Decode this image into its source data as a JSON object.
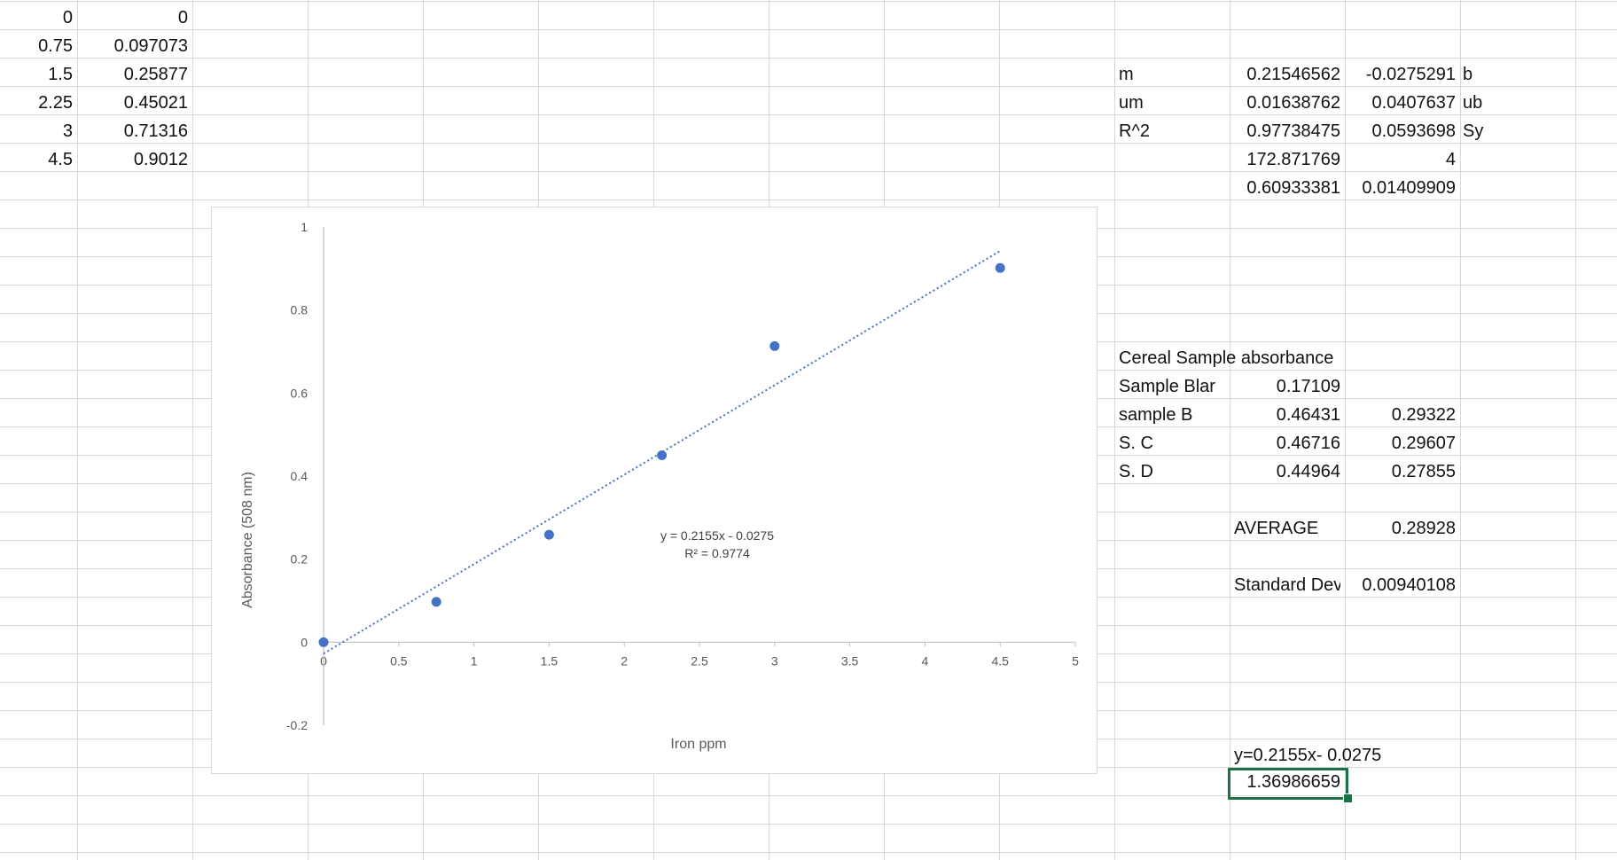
{
  "sheet": {
    "col_a": [
      "0",
      "0.75",
      "1.5",
      "2.25",
      "3",
      "4.5"
    ],
    "col_b": [
      "0",
      "0.097073",
      "0.25877",
      "0.45021",
      "0.71316",
      "0.9012"
    ],
    "linest": {
      "m_label": "m",
      "m": "0.21546562",
      "b": "-0.0275291",
      "b_label": "b",
      "um_label": "um",
      "um": "0.01638762",
      "ub": "0.0407637",
      "ub_label": "ub",
      "r2_label": "R^2",
      "r2": "0.97738475",
      "sy": "0.0593698",
      "sy_label": "Sy",
      "f": "172.871769",
      "df": "4",
      "ssreg": "0.60933381",
      "ssresid": "0.01409909"
    },
    "cereal": {
      "title": "Cereal Sample absorbance",
      "blank_label": " Sample Blar",
      "blank_value": "0.17109",
      "rows": [
        {
          "label": "sample B",
          "abs": "0.46431",
          "corr": "0.29322"
        },
        {
          "label": "S. C",
          "abs": "0.46716",
          "corr": "0.29607"
        },
        {
          "label": "S. D",
          "abs": "0.44964",
          "corr": "0.27855"
        }
      ],
      "average_label": "AVERAGE",
      "average_value": "0.28928",
      "std_label": "Standard Dev",
      "std_value": "0.00940108"
    },
    "equation_text": "y=0.2155x- 0.0275",
    "selected_cell_value": "1.36986659"
  },
  "chart_data": {
    "type": "scatter",
    "title": "",
    "xlabel": "Iron ppm",
    "ylabel": "Absorbance (508 nm)",
    "xlim": [
      0,
      5
    ],
    "ylim": [
      -0.2,
      1
    ],
    "x_ticks": [
      "0",
      "0.5",
      "1",
      "1.5",
      "2",
      "2.5",
      "3",
      "3.5",
      "4",
      "4.5",
      "5"
    ],
    "y_ticks": [
      "-0.2",
      "0",
      "0.2",
      "0.4",
      "0.6",
      "0.8",
      "1"
    ],
    "x": [
      0,
      0.75,
      1.5,
      2.25,
      3,
      4.5
    ],
    "y": [
      0,
      0.097073,
      0.25877,
      0.45021,
      0.71316,
      0.9012
    ],
    "trendline": {
      "slope": 0.2155,
      "intercept": -0.0275,
      "x_range": [
        0,
        4.5
      ]
    },
    "equation_label": "y = 0.2155x - 0.0275",
    "r2_label": "R² = 0.9774",
    "marker_color": "#4472c4",
    "trendline_color": "#4472c4",
    "grid": false
  }
}
